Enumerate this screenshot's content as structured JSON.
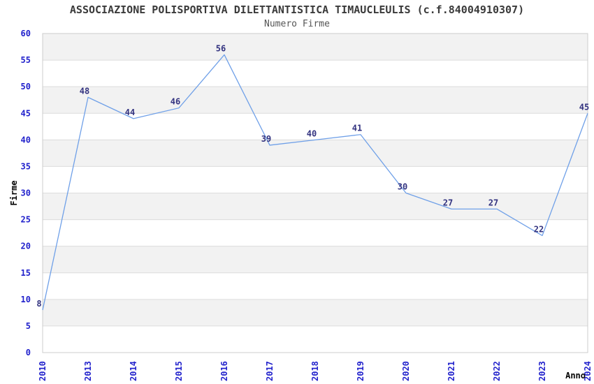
{
  "chart_data": {
    "type": "line",
    "title": "ASSOCIAZIONE POLISPORTIVA DILETTANTISTICA TIMAUCLEULIS (c.f.84004910307)",
    "subtitle": "Numero Firme",
    "xlabel": "Anno",
    "ylabel": "Firme",
    "categories": [
      "2010",
      "2013",
      "2014",
      "2015",
      "2016",
      "2017",
      "2018",
      "2019",
      "2020",
      "2021",
      "2022",
      "2023",
      "2024"
    ],
    "values": [
      8,
      48,
      44,
      46,
      56,
      39,
      40,
      41,
      30,
      27,
      27,
      22,
      45
    ],
    "ylim": [
      0,
      60
    ],
    "ytick_step": 5,
    "grid": true,
    "legend_position": "none",
    "band_fill": "alternating-horizontal",
    "colors": {
      "line": "#6fa0e8",
      "data_label": "#333380",
      "tick_label": "#2222cc",
      "band_gray": "#f2f2f2",
      "band_white": "#ffffff",
      "grid_line": "#dcdcdc",
      "plot_border": "#cccccc",
      "title": "#3a3a3a",
      "subtitle": "#555555",
      "axis_label": "#000000"
    }
  }
}
